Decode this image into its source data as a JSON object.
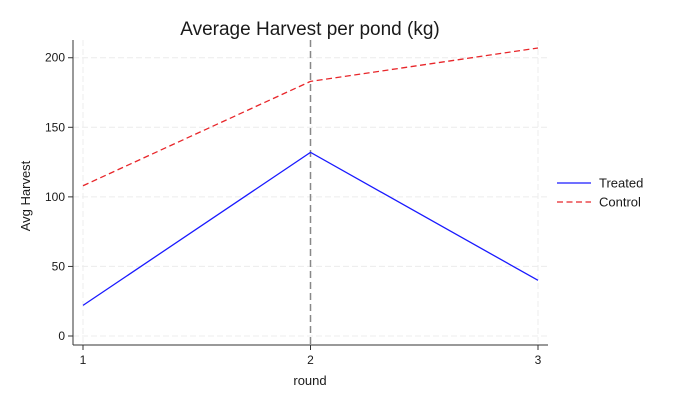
{
  "chart_data": {
    "type": "line",
    "title": "Average Harvest per pond (kg)",
    "xlabel": "round",
    "ylabel": "Avg Harvest",
    "x": [
      1,
      2,
      3
    ],
    "x_ticks": [
      1,
      2,
      3
    ],
    "y_ticks": [
      0,
      50,
      100,
      150,
      200
    ],
    "xlim": [
      1,
      3
    ],
    "ylim": [
      0,
      207
    ],
    "grid": true,
    "vertical_reference_line": {
      "x": 2,
      "style": "dashed",
      "color": "#888888"
    },
    "legend_position": "right",
    "series": [
      {
        "name": "Treated",
        "values": [
          22,
          132,
          40
        ],
        "color": "#1a1aff",
        "dash": "solid"
      },
      {
        "name": "Control",
        "values": [
          108,
          183,
          207
        ],
        "color": "#e8262a",
        "dash": "dashed"
      }
    ]
  }
}
